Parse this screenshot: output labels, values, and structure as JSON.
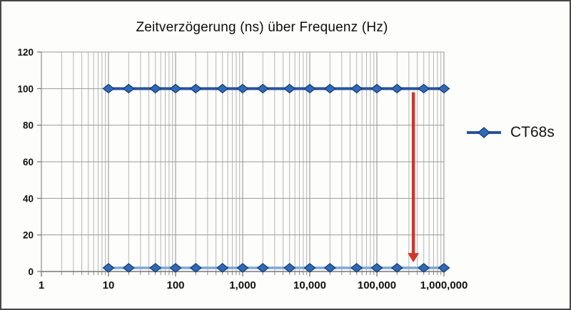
{
  "window": {
    "background": "#fdfdfc",
    "border_color": "#474747"
  },
  "chart_data": {
    "type": "line",
    "title": "Zeitverzögerung (ns) über Frequenz (Hz)",
    "xlabel": "",
    "ylabel": "",
    "x_scale": "log",
    "xlim": [
      1,
      1000000
    ],
    "ylim": [
      0,
      120
    ],
    "y_ticks": [
      0,
      20,
      40,
      60,
      80,
      100,
      120
    ],
    "x_ticks": [
      "1",
      "10",
      "100",
      "1,000",
      "10,000",
      "100,000",
      "1,000,000"
    ],
    "x_tick_values": [
      1,
      10,
      100,
      1000,
      10000,
      100000,
      1000000
    ],
    "grid": "major-and-minor-log-on",
    "legend": {
      "position": "right",
      "entries": [
        "CT68s"
      ]
    },
    "x": [
      10,
      20,
      50,
      100,
      200,
      500,
      1000,
      2000,
      5000,
      10000,
      20000,
      50000,
      100000,
      200000,
      500000,
      1000000
    ],
    "series": [
      {
        "name": "CT68s",
        "values": [
          100,
          100,
          100,
          100,
          100,
          100,
          100,
          100,
          100,
          100,
          100,
          100,
          100,
          100,
          100,
          100
        ],
        "line_color": "#2a549d",
        "line_width": 4,
        "marker": "diamond",
        "marker_fill": "#2e6bb4",
        "marker_stroke": "#173c7c"
      },
      {
        "name": "",
        "values": [
          2,
          2,
          2,
          2,
          2,
          2,
          2,
          2,
          2,
          2,
          2,
          2,
          2,
          2,
          2,
          2
        ],
        "line_color": "#7da7d9",
        "line_width": 3.5,
        "marker": "diamond",
        "marker_fill": "#2e6bb4",
        "marker_stroke": "#173c7c"
      }
    ],
    "annotation": {
      "shape": "arrow-down",
      "x": 350000,
      "y_start": 98,
      "y_end": 5,
      "color": "#d1352a"
    },
    "grid_colors": {
      "minor": "#b5b5b5",
      "major": "#8f8f8f",
      "horizontal": "#9a9a9a",
      "axis": "#777777"
    },
    "tick_label_color": "#111111"
  }
}
